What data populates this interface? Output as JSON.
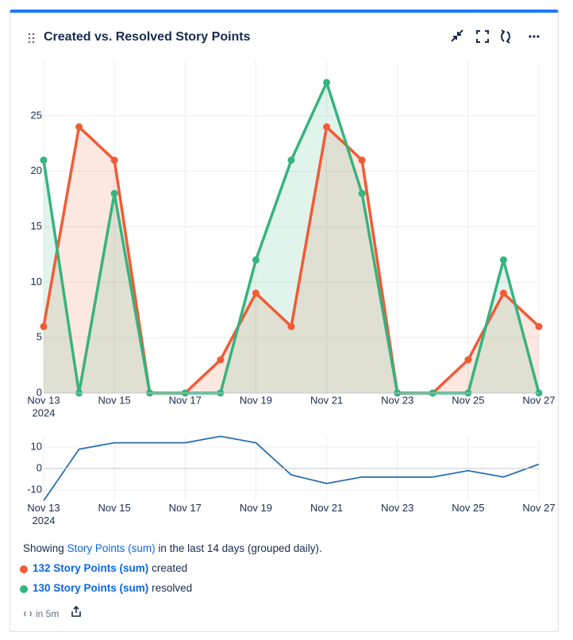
{
  "header": {
    "title": "Created vs. Resolved Story Points"
  },
  "chart_data": [
    {
      "type": "line",
      "area": true,
      "markers": true,
      "x": [
        "2024-11-13",
        "2024-11-14",
        "2024-11-15",
        "2024-11-16",
        "2024-11-17",
        "2024-11-18",
        "2024-11-19",
        "2024-11-20",
        "2024-11-21",
        "2024-11-22",
        "2024-11-23",
        "2024-11-24",
        "2024-11-25",
        "2024-11-26",
        "2024-11-27"
      ],
      "series": [
        {
          "name": "created",
          "color": "#f15b36",
          "values": [
            6,
            24,
            21,
            0,
            0,
            3,
            9,
            6,
            24,
            21,
            0,
            0,
            3,
            9,
            6
          ]
        },
        {
          "name": "resolved",
          "color": "#36b37e",
          "values": [
            21,
            0,
            18,
            0,
            0,
            0,
            12,
            21,
            28,
            18,
            0,
            0,
            0,
            12,
            0
          ]
        }
      ],
      "xlim": [
        "2024-11-13",
        "2024-11-27"
      ],
      "xticks": [
        {
          "value": "2024-11-13",
          "label": "Nov 13",
          "sublabel": "2024"
        },
        {
          "value": "2024-11-15",
          "label": "Nov 15"
        },
        {
          "value": "2024-11-17",
          "label": "Nov 17"
        },
        {
          "value": "2024-11-19",
          "label": "Nov 19"
        },
        {
          "value": "2024-11-21",
          "label": "Nov 21"
        },
        {
          "value": "2024-11-23",
          "label": "Nov 23"
        },
        {
          "value": "2024-11-25",
          "label": "Nov 25"
        },
        {
          "value": "2024-11-27",
          "label": "Nov 27"
        }
      ],
      "ylim": [
        0,
        30
      ],
      "yticks": [
        0,
        5,
        10,
        15,
        20,
        25
      ],
      "grid": true
    },
    {
      "type": "line",
      "area": false,
      "markers": false,
      "x": [
        "2024-11-13",
        "2024-11-14",
        "2024-11-15",
        "2024-11-16",
        "2024-11-17",
        "2024-11-18",
        "2024-11-19",
        "2024-11-20",
        "2024-11-21",
        "2024-11-22",
        "2024-11-23",
        "2024-11-24",
        "2024-11-25",
        "2024-11-26",
        "2024-11-27"
      ],
      "series": [
        {
          "color": "#2a6fb0",
          "values": [
            -15,
            9,
            12,
            12,
            12,
            15,
            12,
            -3,
            -7,
            -4,
            -4,
            -4,
            -1,
            -4,
            2
          ]
        }
      ],
      "xlim": [
        "2024-11-13",
        "2024-11-27"
      ],
      "xticks": [
        {
          "value": "2024-11-13",
          "label": "Nov 13",
          "sublabel": "2024"
        },
        {
          "value": "2024-11-15",
          "label": "Nov 15"
        },
        {
          "value": "2024-11-17",
          "label": "Nov 17"
        },
        {
          "value": "2024-11-19",
          "label": "Nov 19"
        },
        {
          "value": "2024-11-21",
          "label": "Nov 21"
        },
        {
          "value": "2024-11-23",
          "label": "Nov 23"
        },
        {
          "value": "2024-11-25",
          "label": "Nov 25"
        },
        {
          "value": "2024-11-27",
          "label": "Nov 27"
        }
      ],
      "ylim": [
        -15,
        15
      ],
      "yticks": [
        -10,
        0,
        10
      ],
      "grid": true
    }
  ],
  "description": {
    "prefix": "Showing",
    "link": "Story Points (sum)",
    "suffix": "in the last 14 days (grouped daily)."
  },
  "summary": [
    {
      "value": 132,
      "unit": "Story Points (sum)",
      "label": "created",
      "color": "#f15b36"
    },
    {
      "value": 130,
      "unit": "Story Points (sum)",
      "label": "resolved",
      "color": "#36b37e"
    }
  ],
  "footer": {
    "refresh": "in 5m"
  }
}
